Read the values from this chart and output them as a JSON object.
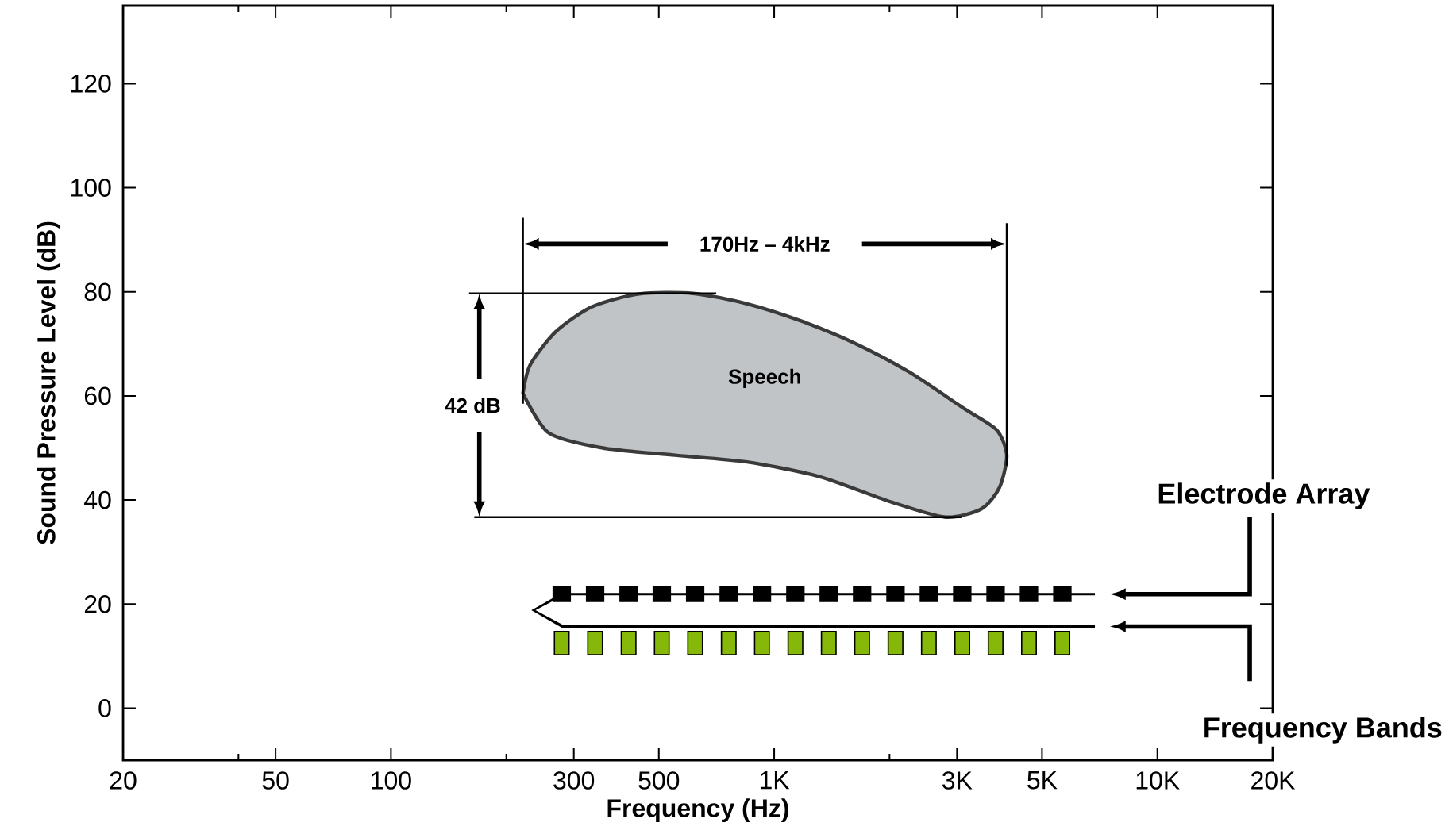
{
  "chart_data": {
    "type": "scatter",
    "xlabel": "Frequency (Hz)",
    "ylabel": "Sound Pressure Level (dB)",
    "log": "x",
    "xlim": [
      20,
      20000
    ],
    "ylim": [
      -10,
      135
    ],
    "xticks": [
      20,
      {
        "value": 40,
        "label": null
      },
      50,
      100,
      {
        "value": 200,
        "label": null
      },
      300,
      500,
      {
        "value": 1000,
        "label": "1K"
      },
      {
        "value": 2000,
        "label": null
      },
      {
        "value": 3000,
        "label": "3K"
      },
      {
        "value": 5000,
        "label": "5K"
      },
      {
        "value": 10000,
        "label": "10K"
      },
      {
        "value": 20000,
        "label": "20K"
      }
    ],
    "yticks": [
      0,
      20,
      40,
      60,
      80,
      100,
      120
    ],
    "annotations": [
      "170Hz – 4kHz",
      "42 dB"
    ],
    "series": [
      {
        "name": "Speech",
        "type": "area",
        "color": "#c0c4c6",
        "x": [
          221,
          231,
          269,
          334,
          444,
          614,
          849,
          1175,
          1626,
          2249,
          3126,
          3802,
          4045,
          3873,
          3475,
          2800,
          2023,
          1312,
          849,
          551,
          357,
          258
        ],
        "values": [
          60.5,
          66.0,
          72.3,
          77.1,
          79.6,
          79.7,
          77.7,
          74.4,
          70.1,
          64.6,
          57.6,
          53.5,
          48.6,
          42.4,
          38.3,
          36.7,
          39.6,
          44.5,
          47.3,
          48.6,
          50.0,
          52.9
        ]
      },
      {
        "name": "Electrode Array",
        "marker": "square",
        "color": "#000000",
        "x": [
          279,
          341,
          417,
          509,
          622,
          761,
          929,
          1136,
          1388,
          1696,
          2073,
          2533,
          3096,
          3783,
          4623,
          5650
        ],
        "values": [
          21.9,
          21.9,
          21.9,
          21.9,
          21.9,
          21.9,
          21.9,
          21.9,
          21.9,
          21.9,
          21.9,
          21.9,
          21.9,
          21.9,
          21.9,
          21.9
        ]
      },
      {
        "name": "Frequency Bands",
        "marker": "square",
        "color": "#86b80a",
        "x": [
          279,
          341,
          417,
          509,
          622,
          761,
          929,
          1136,
          1388,
          1696,
          2073,
          2533,
          3096,
          3783,
          4623,
          5650
        ],
        "values": [
          12.5,
          12.5,
          12.5,
          12.5,
          12.5,
          12.5,
          12.5,
          12.5,
          12.5,
          12.5,
          12.5,
          12.5,
          12.5,
          12.5,
          12.5,
          12.5
        ]
      }
    ]
  }
}
